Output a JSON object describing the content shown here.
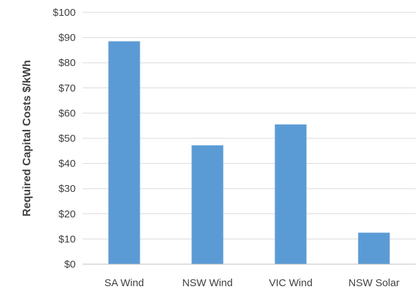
{
  "chart_data": {
    "type": "bar",
    "title": "",
    "xlabel": "",
    "ylabel": "Required Capital Costs $/kWh",
    "categories": [
      "SA Wind",
      "NSW Wind",
      "VIC Wind",
      "NSW Solar"
    ],
    "values": [
      88.5,
      47.2,
      55.5,
      12.5
    ],
    "ylim": [
      0,
      100
    ],
    "yticks": [
      0,
      10,
      20,
      30,
      40,
      50,
      60,
      70,
      80,
      90,
      100
    ],
    "ytick_labels": [
      "$0",
      "$10",
      "$20",
      "$30",
      "$40",
      "$50",
      "$60",
      "$70",
      "$80",
      "$90",
      "$100"
    ],
    "grid": true,
    "legend": "none",
    "colors": {
      "bar": "#5b9bd5",
      "grid": "#d9d9d9",
      "text": "#404040"
    }
  }
}
